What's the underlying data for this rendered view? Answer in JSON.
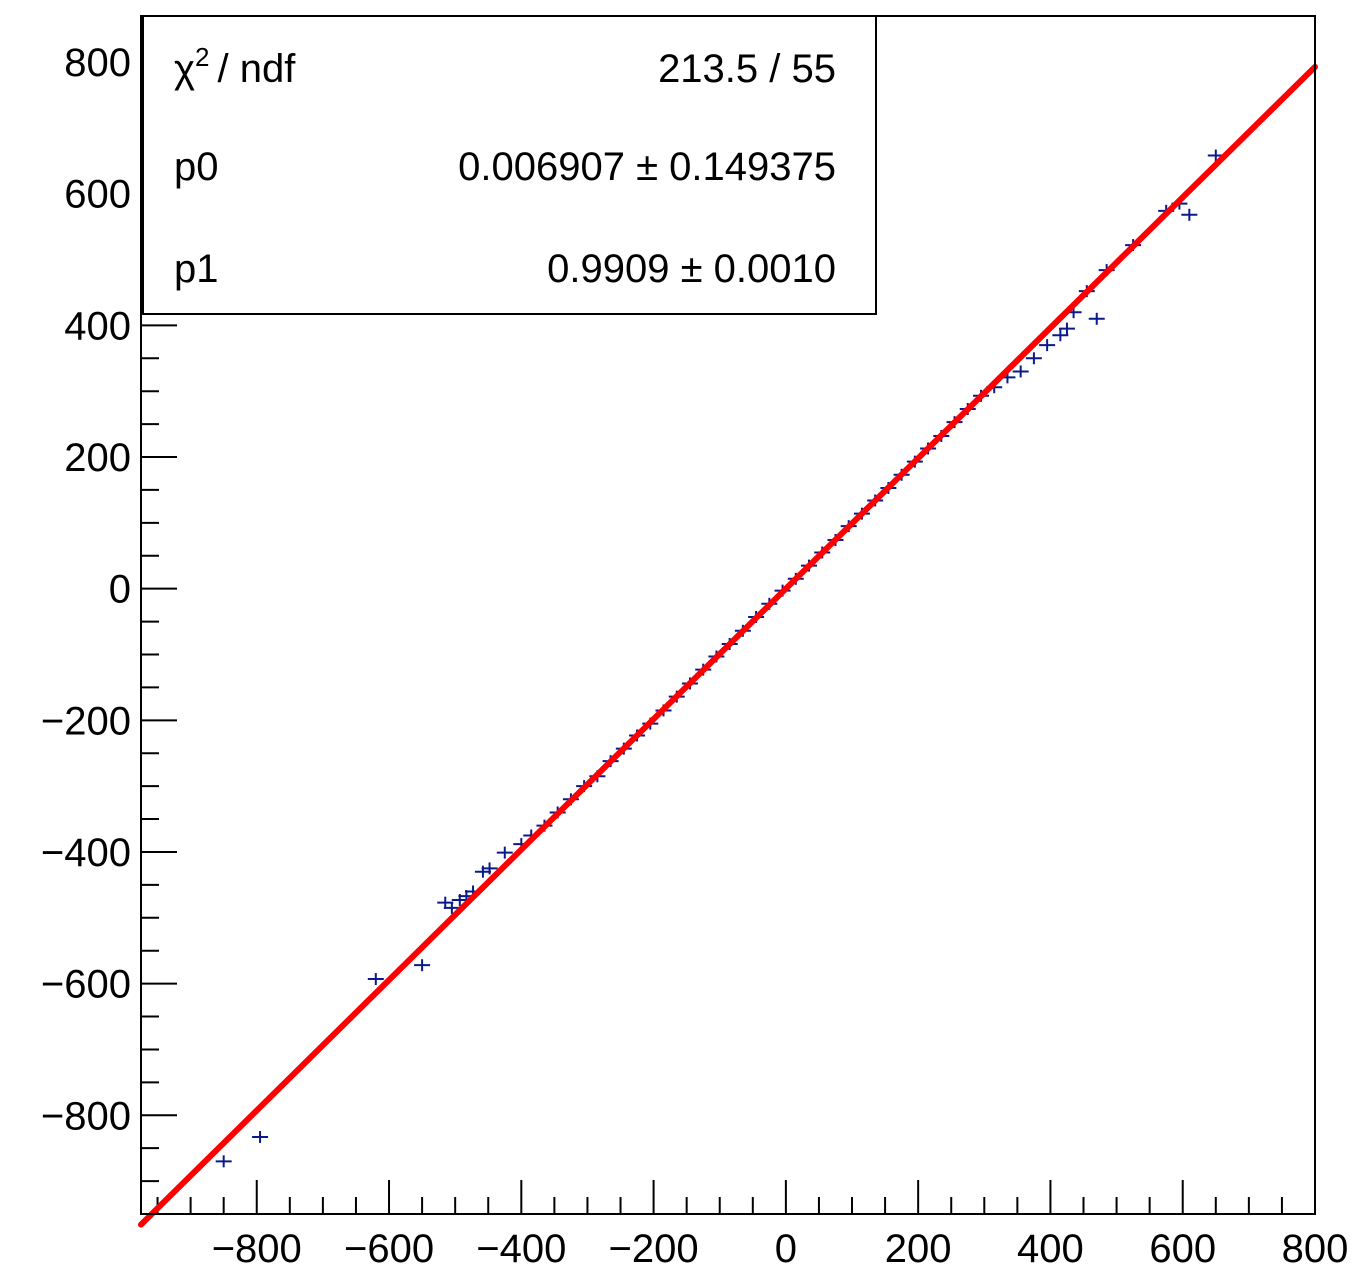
{
  "chart_data": {
    "type": "scatter",
    "title": "",
    "xlabel": "",
    "ylabel": "",
    "xlim": [
      -975,
      800
    ],
    "ylim": [
      -950,
      870
    ],
    "x_ticks": [
      -800,
      -600,
      -400,
      -200,
      0,
      200,
      400,
      600,
      800
    ],
    "y_ticks": [
      -800,
      -600,
      -400,
      -200,
      0,
      200,
      400,
      600,
      800
    ],
    "x_tick_labels": [
      "−800",
      "−600",
      "−400",
      "−200",
      "0",
      "200",
      "400",
      "600",
      "800"
    ],
    "y_tick_labels": [
      "−800",
      "−600",
      "−400",
      "−200",
      "0",
      "200",
      "400",
      "600",
      "800"
    ],
    "grid": false,
    "series": [
      {
        "type": "scatter",
        "color": "#0a1a8c",
        "x": [
          -850,
          -795,
          -620,
          -550,
          -515,
          -505,
          -493,
          -483,
          -473,
          -458,
          -448,
          -425,
          -400,
          -385,
          -365,
          -345,
          -325,
          -305,
          -285,
          -265,
          -245,
          -225,
          -205,
          -185,
          -165,
          -145,
          -125,
          -105,
          -85,
          -65,
          -45,
          -25,
          -5,
          15,
          35,
          55,
          75,
          95,
          115,
          135,
          155,
          175,
          195,
          215,
          235,
          255,
          275,
          295,
          315,
          335,
          355,
          375,
          395,
          415,
          425,
          435,
          455,
          470,
          485,
          525,
          575,
          595,
          610,
          650
        ],
        "y": [
          -870,
          -833,
          -593,
          -572,
          -477,
          -485,
          -473,
          -467,
          -460,
          -430,
          -425,
          -401,
          -388,
          -375,
          -360,
          -340,
          -320,
          -300,
          -285,
          -262,
          -243,
          -223,
          -205,
          -185,
          -164,
          -144,
          -123,
          -103,
          -84,
          -64,
          -43,
          -23,
          -3,
          15,
          35,
          55,
          74,
          95,
          114,
          134,
          153,
          173,
          193,
          213,
          232,
          253,
          273,
          293,
          306,
          321,
          330,
          350,
          370,
          385,
          395,
          420,
          452,
          410,
          484,
          522,
          574,
          585,
          568,
          658
        ]
      },
      {
        "type": "line",
        "color": "#ff0000",
        "function": "p0 + p1*x",
        "p0": 0.006907,
        "p1": 0.9909,
        "x_range": [
          -975,
          800
        ]
      }
    ],
    "stats": {
      "rows": [
        {
          "label": "/ ndf",
          "value": "213.5 / 55"
        },
        {
          "label": "p0",
          "value": "0.006907 ± 0.149375"
        },
        {
          "label": "p1",
          "value": "0.9909 ± 0.0010"
        }
      ],
      "chi": "χ",
      "sup": "2"
    }
  }
}
